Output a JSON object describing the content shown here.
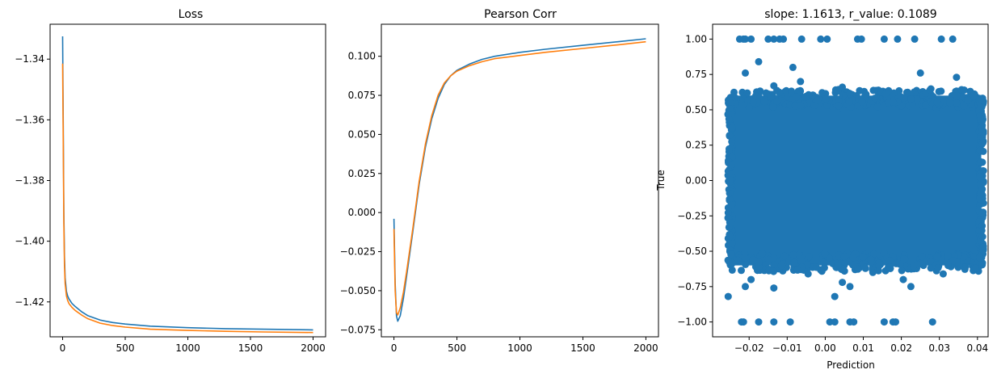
{
  "chart_data": [
    {
      "type": "line",
      "title": "Loss",
      "xlabel": "",
      "ylabel": "",
      "xlim": [
        -100,
        2100
      ],
      "ylim": [
        -1.4315,
        -1.3285
      ],
      "xticks": [
        0,
        500,
        1000,
        1500,
        2000
      ],
      "xtick_labels": [
        "0",
        "500",
        "1000",
        "1500",
        "2000"
      ],
      "yticks": [
        -1.34,
        -1.36,
        -1.38,
        -1.4,
        -1.42
      ],
      "ytick_labels": [
        "−1.34",
        "−1.36",
        "−1.38",
        "−1.40",
        "−1.42"
      ],
      "grid": false,
      "series": [
        {
          "color": "#1f77b4",
          "x": [
            0,
            5,
            10,
            15,
            20,
            30,
            40,
            50,
            75,
            100,
            150,
            200,
            300,
            400,
            500,
            700,
            1000,
            1300,
            1600,
            2000
          ],
          "y": [
            -1.3325,
            -1.362,
            -1.39,
            -1.405,
            -1.412,
            -1.4165,
            -1.418,
            -1.419,
            -1.4205,
            -1.4215,
            -1.4232,
            -1.4245,
            -1.426,
            -1.4268,
            -1.4273,
            -1.428,
            -1.4285,
            -1.4288,
            -1.429,
            -1.4292
          ]
        },
        {
          "color": "#ff7f0e",
          "x": [
            0,
            5,
            10,
            15,
            20,
            30,
            40,
            50,
            75,
            100,
            150,
            200,
            300,
            400,
            500,
            700,
            1000,
            1300,
            1600,
            2000
          ],
          "y": [
            -1.3415,
            -1.368,
            -1.394,
            -1.408,
            -1.414,
            -1.418,
            -1.4195,
            -1.4205,
            -1.4218,
            -1.4228,
            -1.4243,
            -1.4255,
            -1.427,
            -1.4278,
            -1.4283,
            -1.429,
            -1.4294,
            -1.4297,
            -1.4299,
            -1.4301
          ]
        }
      ]
    },
    {
      "type": "line",
      "title": "Pearson Corr",
      "xlabel": "",
      "ylabel": "",
      "xlim": [
        -100,
        2100
      ],
      "ylim": [
        -0.0795,
        0.1205
      ],
      "xticks": [
        0,
        500,
        1000,
        1500,
        2000
      ],
      "xtick_labels": [
        "0",
        "500",
        "1000",
        "1500",
        "2000"
      ],
      "yticks": [
        0.1,
        0.075,
        0.05,
        0.025,
        0.0,
        -0.025,
        -0.05,
        -0.075
      ],
      "ytick_labels": [
        "0.100",
        "0.075",
        "0.050",
        "0.025",
        "0.000",
        "−0.025",
        "−0.050",
        "−0.075"
      ],
      "grid": false,
      "series": [
        {
          "color": "#1f77b4",
          "x": [
            0,
            10,
            20,
            30,
            50,
            75,
            100,
            150,
            200,
            250,
            300,
            350,
            400,
            450,
            500,
            600,
            700,
            800,
            1000,
            1200,
            1500,
            1800,
            2000
          ],
          "y": [
            -0.004,
            -0.045,
            -0.066,
            -0.0695,
            -0.066,
            -0.055,
            -0.041,
            -0.012,
            0.018,
            0.042,
            0.06,
            0.073,
            0.082,
            0.0875,
            0.091,
            0.095,
            0.098,
            0.1,
            0.1025,
            0.1045,
            0.107,
            0.1095,
            0.1112
          ]
        },
        {
          "color": "#ff7f0e",
          "x": [
            0,
            10,
            20,
            30,
            50,
            75,
            100,
            150,
            200,
            250,
            300,
            350,
            400,
            450,
            500,
            600,
            700,
            800,
            1000,
            1200,
            1500,
            1800,
            2000
          ],
          "y": [
            -0.0105,
            -0.05,
            -0.064,
            -0.0655,
            -0.061,
            -0.051,
            -0.038,
            -0.01,
            0.02,
            0.044,
            0.062,
            0.075,
            0.083,
            0.0875,
            0.0905,
            0.094,
            0.0965,
            0.0985,
            0.1005,
            0.1025,
            0.105,
            0.1075,
            0.1093
          ]
        }
      ]
    },
    {
      "type": "scatter",
      "title": "slope: 1.1613, r_value: 0.1089",
      "xlabel": "Prediction",
      "ylabel": "True",
      "xlim": [
        -0.0296,
        0.0428
      ],
      "ylim": [
        -1.105,
        1.105
      ],
      "xticks": [
        -0.02,
        -0.01,
        0.0,
        0.01,
        0.02,
        0.03,
        0.04
      ],
      "xtick_labels": [
        "−0.02",
        "−0.01",
        "0.00",
        "0.01",
        "0.02",
        "0.03",
        "0.04"
      ],
      "yticks": [
        1.0,
        0.75,
        0.5,
        0.25,
        0.0,
        -0.25,
        -0.5,
        -0.75,
        -1.0
      ],
      "ytick_labels": [
        "1.00",
        "0.75",
        "0.50",
        "0.25",
        "0.00",
        "−0.25",
        "−0.50",
        "−0.75",
        "−1.00"
      ],
      "grid": false,
      "color": "#1f77b4",
      "dense_region": {
        "x": [
          -0.025,
          0.041
        ],
        "y": [
          -0.6,
          0.6
        ]
      },
      "points": [
        [
          -0.0225,
          1.0
        ],
        [
          -0.0215,
          1.0
        ],
        [
          -0.021,
          1.0
        ],
        [
          -0.0195,
          1.0
        ],
        [
          -0.015,
          1.0
        ],
        [
          -0.0135,
          1.0
        ],
        [
          -0.012,
          1.0
        ],
        [
          -0.011,
          1.0
        ],
        [
          -0.0062,
          1.0
        ],
        [
          -0.0012,
          1.0
        ],
        [
          0.0005,
          1.0
        ],
        [
          0.0085,
          1.0
        ],
        [
          0.0095,
          1.0
        ],
        [
          0.0155,
          1.0
        ],
        [
          0.019,
          1.0
        ],
        [
          0.0235,
          1.0
        ],
        [
          0.0305,
          1.0
        ],
        [
          0.0335,
          1.0
        ],
        [
          -0.022,
          -1.0
        ],
        [
          -0.0215,
          -1.0
        ],
        [
          -0.0175,
          -1.0
        ],
        [
          -0.0135,
          -1.0
        ],
        [
          -0.0092,
          -1.0
        ],
        [
          0.0012,
          -1.0
        ],
        [
          0.0025,
          -1.0
        ],
        [
          0.0065,
          -1.0
        ],
        [
          0.0075,
          -1.0
        ],
        [
          0.0155,
          -1.0
        ],
        [
          0.0178,
          -1.0
        ],
        [
          0.0185,
          -1.0
        ],
        [
          0.0282,
          -1.0
        ],
        [
          -0.0175,
          0.84
        ],
        [
          -0.021,
          0.76
        ],
        [
          -0.0085,
          0.8
        ],
        [
          -0.0135,
          0.67
        ],
        [
          -0.0065,
          0.7
        ],
        [
          0.0045,
          0.66
        ],
        [
          0.025,
          0.76
        ],
        [
          0.0345,
          0.73
        ],
        [
          0.039,
          0.6
        ],
        [
          -0.0255,
          -0.82
        ],
        [
          -0.021,
          -0.75
        ],
        [
          -0.0195,
          -0.7
        ],
        [
          -0.0135,
          -0.76
        ],
        [
          -0.0045,
          -0.66
        ],
        [
          0.0025,
          -0.82
        ],
        [
          0.0045,
          -0.72
        ],
        [
          0.0065,
          -0.75
        ],
        [
          0.0125,
          -0.65
        ],
        [
          0.0205,
          -0.7
        ],
        [
          0.0225,
          -0.75
        ],
        [
          0.031,
          -0.66
        ],
        [
          0.0395,
          -0.62
        ]
      ]
    }
  ]
}
